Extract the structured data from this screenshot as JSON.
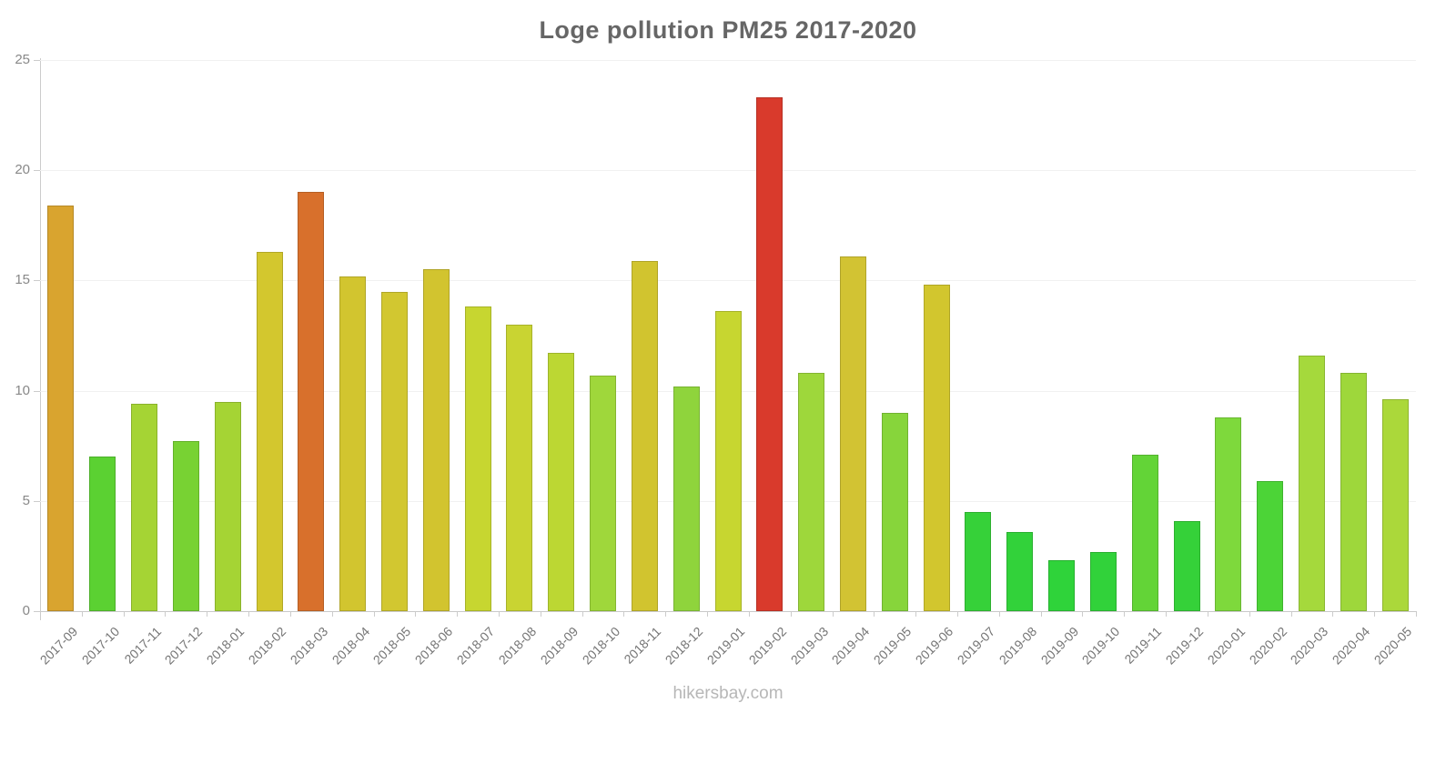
{
  "page": {
    "watermark": "hikersbay.com"
  },
  "chart_data": {
    "type": "bar",
    "title": "Loge pollution PM25 2017-2020",
    "xlabel": "",
    "ylabel": "",
    "ylim": [
      0,
      25
    ],
    "yticks": [
      0,
      5,
      10,
      15,
      20,
      25
    ],
    "grid": true,
    "legend": false,
    "categories": [
      "2017-09",
      "2017-10",
      "2017-11",
      "2017-12",
      "2018-01",
      "2018-02",
      "2018-03",
      "2018-04",
      "2018-05",
      "2018-06",
      "2018-07",
      "2018-08",
      "2018-09",
      "2018-10",
      "2018-11",
      "2018-12",
      "2019-01",
      "2019-02",
      "2019-03",
      "2019-04",
      "2019-05",
      "2019-06",
      "2019-07",
      "2019-08",
      "2019-09",
      "2019-10",
      "2019-11",
      "2019-12",
      "2020-01",
      "2020-02",
      "2020-03",
      "2020-04",
      "2020-05"
    ],
    "values": [
      18.4,
      7.0,
      9.4,
      7.7,
      9.5,
      16.3,
      19.0,
      15.2,
      14.5,
      15.5,
      13.8,
      13.0,
      11.7,
      10.7,
      15.9,
      10.2,
      13.6,
      23.3,
      10.8,
      16.1,
      9.0,
      14.8,
      4.5,
      3.6,
      2.3,
      2.7,
      7.1,
      4.1,
      8.8,
      5.9,
      11.6,
      10.8,
      9.6
    ],
    "colors": [
      "#D9A42F",
      "#5BD132",
      "#A5D434",
      "#78D233",
      "#A5D434",
      "#D3C72E",
      "#D8702C",
      "#D2C52F",
      "#D2C730",
      "#D2C42F",
      "#C7D630",
      "#C9D432",
      "#BCD733",
      "#9FD73B",
      "#D1C42F",
      "#8FD43C",
      "#C7D630",
      "#D93A2C",
      "#9ED73B",
      "#D2C333",
      "#87D53B",
      "#D2C62E",
      "#36D139",
      "#32D23A",
      "#2FD33A",
      "#31D23A",
      "#63D437",
      "#35D139",
      "#7ED93C",
      "#4CD437",
      "#A5D93C",
      "#9ED73B",
      "#ABD83A"
    ],
    "colors_legend": {
      "low_green": "#2FD33A",
      "mid_yellow": "#D2C52F",
      "high_orange": "#D8702C",
      "max_red": "#D93A2C"
    },
    "axis_style": {
      "axis_color": "#cccccc",
      "grid_color": "#f1f1f1",
      "ylabel_color": "#888888",
      "xlabel_color": "#757575",
      "title_color": "#666666",
      "watermark_color": "#b7b7b7"
    }
  }
}
